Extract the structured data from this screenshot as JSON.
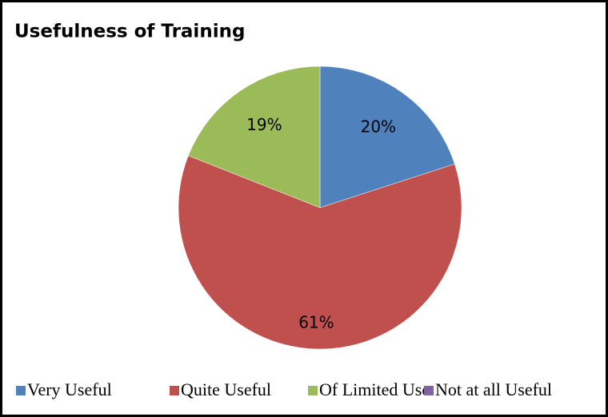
{
  "chart_data": {
    "type": "pie",
    "title": "Usefulness of Training",
    "categories": [
      "Very Useful",
      "Quite Useful",
      "Of Limited Use",
      "Not at all Useful"
    ],
    "values": [
      20,
      61,
      19,
      0
    ],
    "value_labels": [
      "20%",
      "61%",
      "19%",
      null
    ],
    "colors": [
      "#4f81bd",
      "#c0504d",
      "#9bbb59",
      "#8064a2"
    ],
    "legend": "bottom"
  }
}
